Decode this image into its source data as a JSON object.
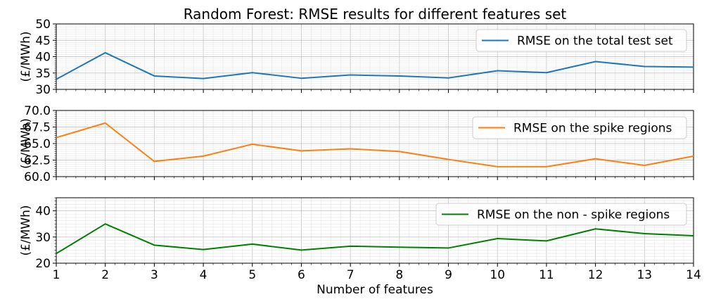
{
  "chart_data": {
    "type": "line",
    "title": "Random Forest: RMSE results for different features set",
    "xlabel": "Number of features",
    "x": [
      1,
      2,
      3,
      4,
      5,
      6,
      7,
      8,
      9,
      10,
      11,
      12,
      13,
      14
    ],
    "xlim": [
      1,
      14
    ],
    "grid": true,
    "panels": [
      {
        "ylabel": "(£/MWh)",
        "ylim": [
          30,
          50
        ],
        "yticks": [
          30,
          35,
          40,
          45,
          50
        ],
        "ytick_labels": [
          "30",
          "35",
          "40",
          "45",
          "50"
        ],
        "legend_position": "top-right",
        "series": [
          {
            "name": "RMSE on the total test set",
            "color": "#1f77b4",
            "values": [
              33.1,
              41.2,
              34.1,
              33.3,
              35.1,
              33.4,
              34.4,
              34.1,
              33.5,
              35.7,
              35.1,
              38.5,
              37.0,
              36.8
            ]
          }
        ]
      },
      {
        "ylabel": "(£/MWh)",
        "ylim": [
          60,
          70
        ],
        "yticks": [
          60,
          62.5,
          65,
          67.5,
          70
        ],
        "ytick_labels": [
          "60.0",
          "62.5",
          "65.0",
          "67.5",
          "70.0"
        ],
        "legend_position": "top-right",
        "series": [
          {
            "name": "RMSE on the spike regions",
            "color": "#ff7f0e",
            "values": [
              65.9,
              68.1,
              62.3,
              63.1,
              64.9,
              63.9,
              64.2,
              63.8,
              62.6,
              61.5,
              61.5,
              62.7,
              61.7,
              63.1
            ]
          }
        ]
      },
      {
        "ylabel": "(£/MWh)",
        "ylim": [
          20,
          45
        ],
        "yticks": [
          20,
          30,
          40
        ],
        "ytick_labels": [
          "20",
          "30",
          "40"
        ],
        "legend_position": "top-right",
        "series": [
          {
            "name": "RMSE on the non - spike regions",
            "color": "#008000",
            "values": [
              23.7,
              35.0,
              26.9,
              25.2,
              27.3,
              25.0,
              26.5,
              26.1,
              25.8,
              29.4,
              28.5,
              33.1,
              31.3,
              30.5
            ]
          }
        ]
      }
    ]
  }
}
